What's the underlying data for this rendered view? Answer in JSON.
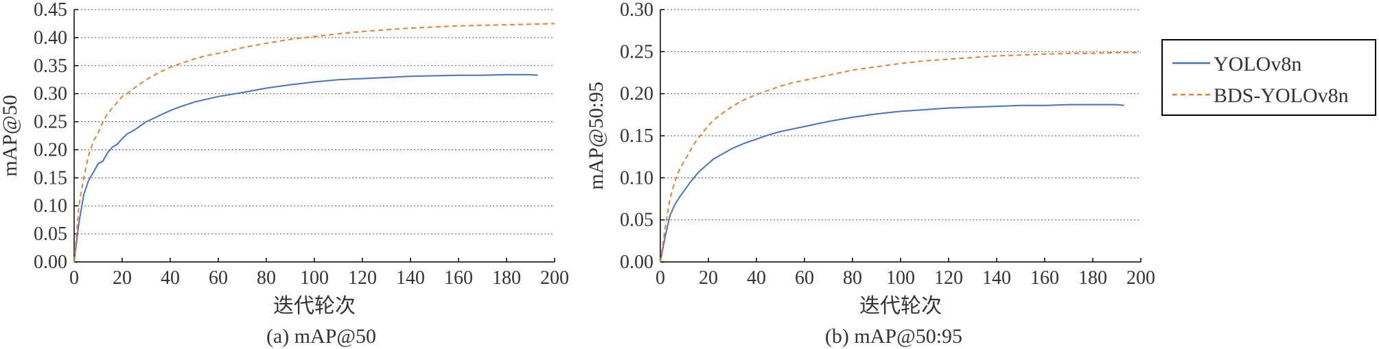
{
  "chart_data": [
    {
      "type": "line",
      "caption": "(a) mAP@50",
      "xlabel": "迭代轮次",
      "ylabel": "mAP@50",
      "xlim": [
        0,
        200
      ],
      "ylim": [
        0,
        0.45
      ],
      "xticks": [
        "0",
        "20",
        "40",
        "60",
        "80",
        "100",
        "120",
        "140",
        "160",
        "180",
        "200"
      ],
      "yticks": [
        "0.00",
        "0.05",
        "0.10",
        "0.15",
        "0.20",
        "0.25",
        "0.30",
        "0.35",
        "0.40",
        "0.45"
      ],
      "grid": "horizontal-dotted",
      "series": [
        {
          "name": "YOLOv8n",
          "color": "#4472c4",
          "dash": "solid",
          "x": [
            0,
            2,
            4,
            6,
            8,
            10,
            12,
            14,
            16,
            18,
            20,
            22,
            25,
            30,
            35,
            40,
            45,
            50,
            55,
            60,
            70,
            80,
            90,
            100,
            110,
            120,
            130,
            140,
            150,
            160,
            170,
            180,
            190,
            193
          ],
          "y": [
            0.0,
            0.07,
            0.12,
            0.145,
            0.16,
            0.175,
            0.18,
            0.195,
            0.205,
            0.21,
            0.22,
            0.228,
            0.235,
            0.25,
            0.26,
            0.27,
            0.278,
            0.285,
            0.29,
            0.295,
            0.302,
            0.31,
            0.316,
            0.321,
            0.325,
            0.327,
            0.329,
            0.331,
            0.332,
            0.333,
            0.333,
            0.334,
            0.334,
            0.333
          ]
        },
        {
          "name": "BDS-YOLOv8n",
          "color": "#ed7d31",
          "dash": "dashed",
          "x": [
            0,
            2,
            4,
            6,
            8,
            10,
            12,
            14,
            16,
            18,
            20,
            22,
            25,
            30,
            35,
            40,
            45,
            50,
            55,
            60,
            70,
            80,
            90,
            100,
            110,
            120,
            130,
            140,
            150,
            160,
            170,
            180,
            190,
            200
          ],
          "y": [
            0.0,
            0.1,
            0.15,
            0.19,
            0.215,
            0.23,
            0.25,
            0.265,
            0.275,
            0.285,
            0.295,
            0.3,
            0.31,
            0.325,
            0.337,
            0.347,
            0.355,
            0.362,
            0.368,
            0.372,
            0.382,
            0.39,
            0.397,
            0.402,
            0.407,
            0.411,
            0.414,
            0.417,
            0.419,
            0.421,
            0.422,
            0.423,
            0.424,
            0.425
          ]
        }
      ]
    },
    {
      "type": "line",
      "caption": "(b) mAP@50:95",
      "xlabel": "迭代轮次",
      "ylabel": "mAP@50:95",
      "xlim": [
        0,
        200
      ],
      "ylim": [
        0,
        0.3
      ],
      "xticks": [
        "0",
        "20",
        "40",
        "60",
        "80",
        "100",
        "120",
        "140",
        "160",
        "180",
        "200"
      ],
      "yticks": [
        "0.00",
        "0.05",
        "0.10",
        "0.15",
        "0.20",
        "0.25",
        "0.30"
      ],
      "grid": "horizontal-dotted",
      "series": [
        {
          "name": "YOLOv8n",
          "color": "#4472c4",
          "dash": "solid",
          "x": [
            0,
            2,
            4,
            6,
            8,
            10,
            12,
            14,
            16,
            18,
            20,
            22,
            25,
            30,
            35,
            40,
            45,
            50,
            55,
            60,
            70,
            80,
            90,
            100,
            110,
            120,
            130,
            140,
            150,
            160,
            170,
            180,
            190,
            193
          ],
          "y": [
            0.0,
            0.03,
            0.055,
            0.068,
            0.077,
            0.085,
            0.093,
            0.1,
            0.107,
            0.112,
            0.117,
            0.122,
            0.127,
            0.135,
            0.141,
            0.146,
            0.151,
            0.155,
            0.158,
            0.161,
            0.167,
            0.172,
            0.176,
            0.179,
            0.181,
            0.183,
            0.184,
            0.185,
            0.186,
            0.186,
            0.187,
            0.187,
            0.187,
            0.186
          ]
        },
        {
          "name": "BDS-YOLOv8n",
          "color": "#ed7d31",
          "dash": "dashed",
          "x": [
            0,
            2,
            4,
            6,
            8,
            10,
            12,
            14,
            16,
            18,
            20,
            22,
            25,
            30,
            35,
            40,
            45,
            50,
            55,
            60,
            70,
            80,
            90,
            100,
            110,
            120,
            130,
            140,
            150,
            160,
            170,
            180,
            190,
            200
          ],
          "y": [
            0.0,
            0.04,
            0.075,
            0.095,
            0.11,
            0.12,
            0.13,
            0.14,
            0.148,
            0.155,
            0.162,
            0.168,
            0.175,
            0.185,
            0.193,
            0.199,
            0.204,
            0.209,
            0.213,
            0.216,
            0.222,
            0.228,
            0.232,
            0.236,
            0.239,
            0.241,
            0.243,
            0.245,
            0.246,
            0.247,
            0.248,
            0.248,
            0.249,
            0.249
          ]
        }
      ]
    }
  ],
  "legend": {
    "placement": "right",
    "items": [
      {
        "label": "YOLOv8n",
        "color": "#4472c4",
        "dash": "solid"
      },
      {
        "label": "BDS-YOLOv8n",
        "color": "#ed7d31",
        "dash": "dashed"
      }
    ]
  }
}
